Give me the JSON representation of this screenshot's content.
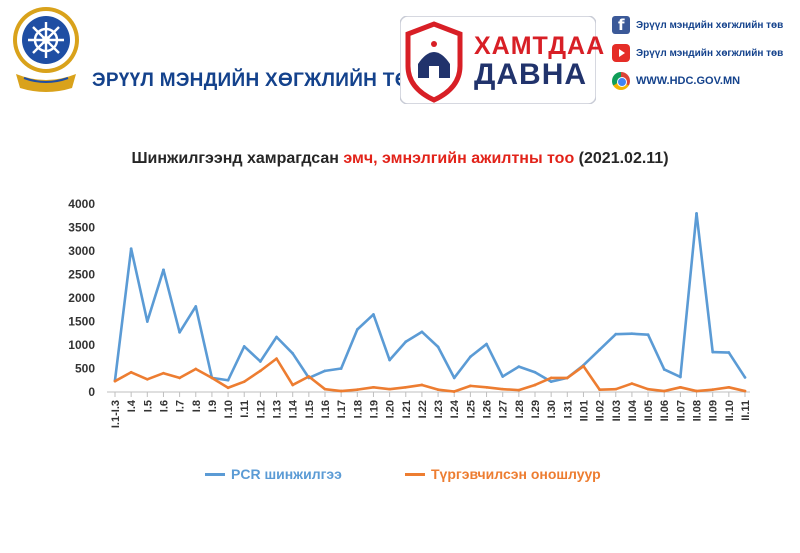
{
  "header": {
    "org_name": "ЭРҮҮЛ МЭНДИЙН ХӨГЖЛИЙН ТӨВ",
    "emblem_ring_text": "ЭРҮҮЛ МЭНДИЙН ХӨГЖЛИЙН ТӨВ",
    "badge_line1": "ХАМТДАА",
    "badge_line2": "ДАВНА",
    "social": [
      {
        "icon": "facebook-icon",
        "text": "Эрүүл мэндийн хөгжлийн төв"
      },
      {
        "icon": "youtube-icon",
        "text": "Эрүүл мэндийн хөгжлийн төв"
      },
      {
        "icon": "chrome-icon",
        "text": "WWW.HDC.GOV.MN"
      }
    ],
    "colors": {
      "brand_blue": "#14428c",
      "badge_red": "#d81f26",
      "badge_navy": "#21336c",
      "emblem_gold": "#d9a21b"
    }
  },
  "chart": {
    "title_part1": "Шинжилгээнд хамрагдсан ",
    "title_part2": "эмч, эмнэлгийн ажилтны тоо",
    "title_part3": " (2021.02.11)"
  },
  "chart_data": {
    "type": "line",
    "title": "Шинжилгээнд хамрагдсан эмч, эмнэлгийн ажилтны тоо (2021.02.11)",
    "categories": [
      "I.1-I.3",
      "I.4",
      "I.5",
      "I.6",
      "I.7",
      "I.8",
      "I.9",
      "I.10",
      "I.11",
      "I.12",
      "I.13",
      "I.14",
      "I.15",
      "I.16",
      "I.17",
      "I.18",
      "I.19",
      "I.20",
      "I.21",
      "I.22",
      "I.23",
      "I.24",
      "I.25",
      "I.26",
      "I.27",
      "I.28",
      "I.29",
      "I.30",
      "I.31",
      "II.01",
      "II.02",
      "II.03",
      "II.04",
      "II.05",
      "II.06",
      "II.07",
      "II.08",
      "II.09",
      "II.10",
      "II.11"
    ],
    "yticks": [
      0,
      500,
      1000,
      1500,
      2000,
      2500,
      3000,
      3500,
      4000
    ],
    "ylim": [
      0,
      4000
    ],
    "grid": false,
    "legend_position": "bottom",
    "series": [
      {
        "name": "PCR шинжилгээ",
        "color": "#5b9bd5",
        "values": [
          250,
          3050,
          1500,
          2600,
          1270,
          1820,
          300,
          250,
          970,
          650,
          1170,
          820,
          300,
          450,
          500,
          1330,
          1650,
          680,
          1070,
          1280,
          960,
          300,
          750,
          1020,
          330,
          540,
          420,
          220,
          300,
          570,
          900,
          1230,
          1240,
          1220,
          480,
          320,
          3800,
          850,
          840,
          310
        ]
      },
      {
        "name": "Түргэвчилсэн оношлуур",
        "color": "#ed7d31",
        "values": [
          230,
          420,
          270,
          400,
          300,
          490,
          300,
          90,
          220,
          450,
          710,
          150,
          330,
          60,
          20,
          50,
          100,
          60,
          100,
          150,
          50,
          10,
          130,
          100,
          60,
          40,
          150,
          300,
          300,
          550,
          50,
          60,
          180,
          60,
          20,
          100,
          20,
          50,
          100,
          20
        ]
      }
    ]
  }
}
